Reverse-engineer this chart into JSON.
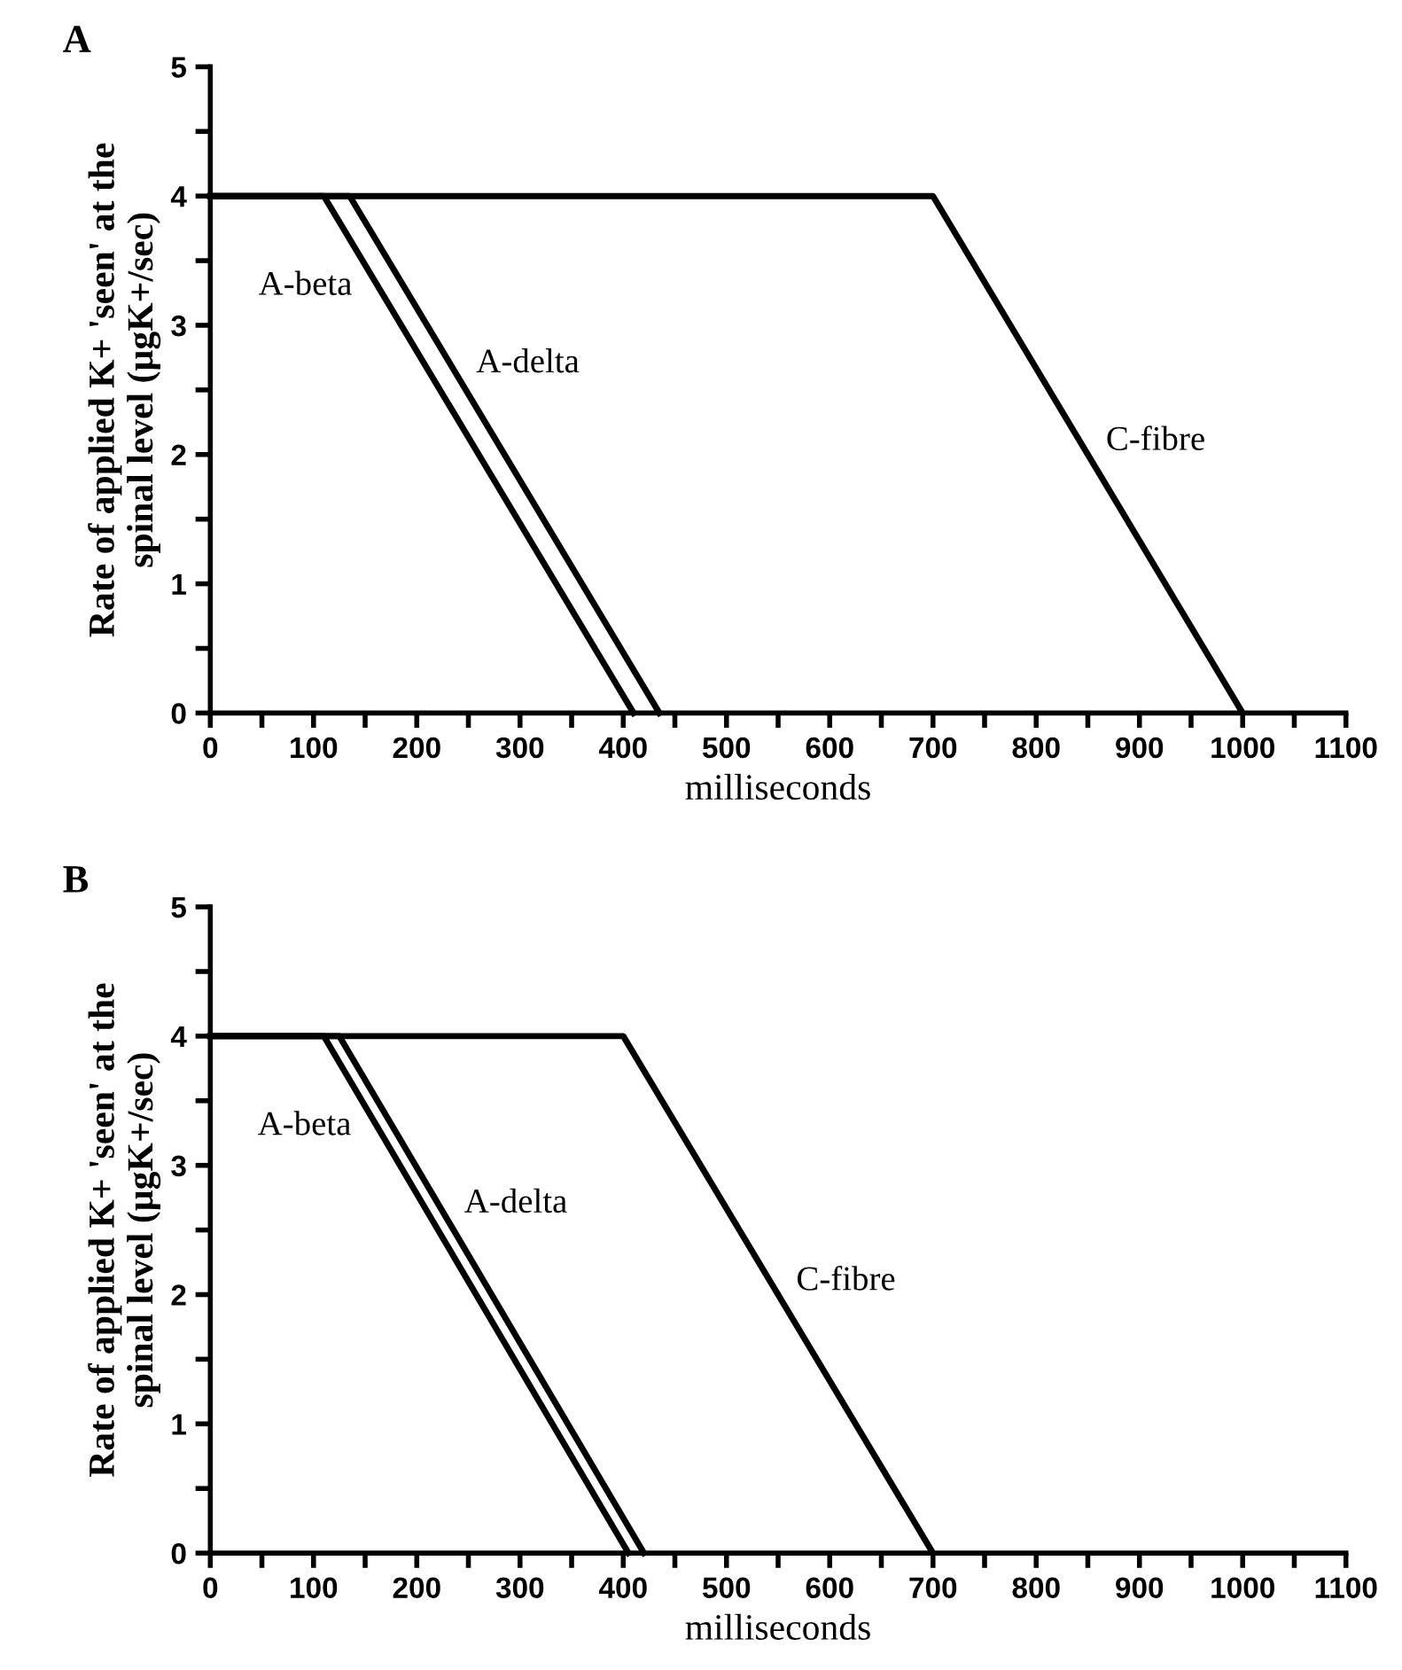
{
  "chart_data": [
    {
      "type": "line",
      "title": "A",
      "xlabel": "milliseconds",
      "ylabel": "Rate of applied K+ 'seen' at the\nspinal level (µgK+/sec)",
      "xlim": [
        0,
        1100
      ],
      "ylim": [
        0,
        5
      ],
      "xticks": [
        0,
        {
          "value": 50,
          "label": null
        },
        100,
        {
          "value": 150,
          "label": null
        },
        200,
        {
          "value": 250,
          "label": null
        },
        300,
        {
          "value": 350,
          "label": null
        },
        400,
        {
          "value": 450,
          "label": null
        },
        500,
        {
          "value": 550,
          "label": null
        },
        600,
        {
          "value": 650,
          "label": null
        },
        700,
        {
          "value": 750,
          "label": null
        },
        800,
        {
          "value": 850,
          "label": null
        },
        900,
        {
          "value": 950,
          "label": null
        },
        1000,
        {
          "value": 1050,
          "label": null
        },
        1100
      ],
      "yticks": [
        0,
        {
          "value": 0.5,
          "label": null
        },
        1,
        {
          "value": 1.5,
          "label": null
        },
        2,
        {
          "value": 2.5,
          "label": null
        },
        3,
        {
          "value": 3.5,
          "label": null
        },
        4,
        {
          "value": 4.5,
          "label": null
        },
        5
      ],
      "grid": false,
      "marker": "none",
      "line_style": "solid",
      "series": [
        {
          "name": "A-beta",
          "color": "#000000",
          "x": [
            0,
            110,
            410
          ],
          "values": [
            4,
            4,
            0
          ]
        },
        {
          "name": "A-delta",
          "color": "#000000",
          "x": [
            0,
            135,
            435
          ],
          "values": [
            4,
            4,
            0
          ]
        },
        {
          "name": "C-fibre",
          "color": "#000000",
          "x": [
            0,
            700,
            1000
          ],
          "values": [
            4,
            4,
            0
          ]
        }
      ]
    },
    {
      "type": "line",
      "title": "B",
      "xlabel": "milliseconds",
      "ylabel": "Rate of applied K+ 'seen' at the\nspinal level (µgK+/sec)",
      "xlim": [
        0,
        1100
      ],
      "ylim": [
        0,
        5
      ],
      "xticks": [
        0,
        {
          "value": 50,
          "label": null
        },
        100,
        {
          "value": 150,
          "label": null
        },
        200,
        {
          "value": 250,
          "label": null
        },
        300,
        {
          "value": 350,
          "label": null
        },
        400,
        {
          "value": 450,
          "label": null
        },
        500,
        {
          "value": 550,
          "label": null
        },
        600,
        {
          "value": 650,
          "label": null
        },
        700,
        {
          "value": 750,
          "label": null
        },
        800,
        {
          "value": 850,
          "label": null
        },
        900,
        {
          "value": 950,
          "label": null
        },
        1000,
        {
          "value": 1050,
          "label": null
        },
        1100
      ],
      "yticks": [
        0,
        {
          "value": 0.5,
          "label": null
        },
        1,
        {
          "value": 1.5,
          "label": null
        },
        2,
        {
          "value": 2.5,
          "label": null
        },
        3,
        {
          "value": 3.5,
          "label": null
        },
        4,
        {
          "value": 4.5,
          "label": null
        },
        5
      ],
      "grid": false,
      "marker": "none",
      "line_style": "solid",
      "series": [
        {
          "name": "A-beta",
          "color": "#000000",
          "x": [
            0,
            110,
            405
          ],
          "values": [
            4,
            4,
            0
          ]
        },
        {
          "name": "A-delta",
          "color": "#000000",
          "x": [
            0,
            125,
            420
          ],
          "values": [
            4,
            4,
            0
          ]
        },
        {
          "name": "C-fibre",
          "color": "#000000",
          "x": [
            0,
            400,
            700
          ],
          "values": [
            4,
            4,
            0
          ]
        }
      ]
    }
  ]
}
